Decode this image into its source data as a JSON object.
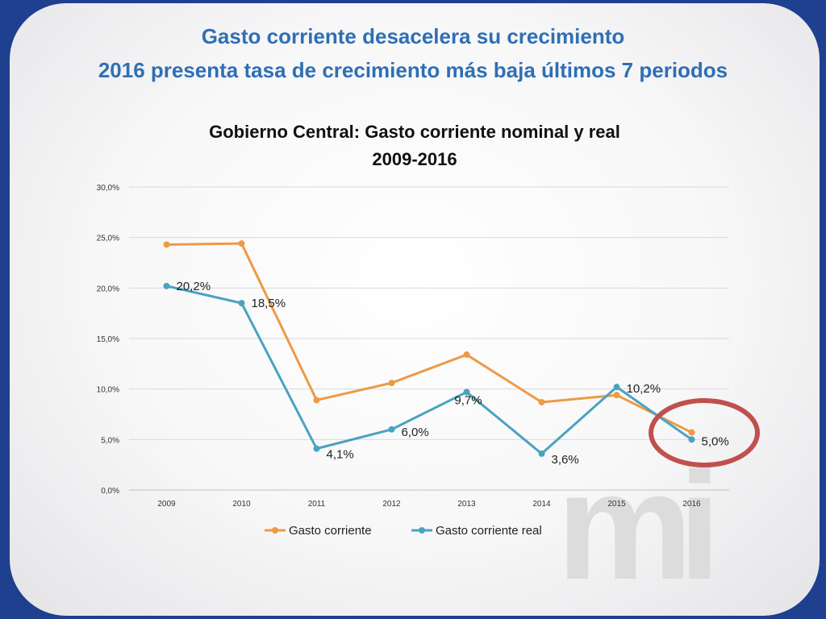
{
  "slide": {
    "headline_1": "Gasto corriente desacelera su crecimiento",
    "headline_2": "2016 presenta  tasa de crecimiento más baja últimos 7  periodos",
    "logo_text": "mi"
  },
  "colors": {
    "background": "#1f3f8f",
    "headline": "#2f6fb5",
    "series_nominal": "#ed9a44",
    "series_real": "#4aa3c0",
    "highlight_ellipse": "#c0504d"
  },
  "chart_data": {
    "type": "line",
    "title": "Gobierno Central: Gasto corriente nominal y real",
    "subtitle": "2009-2016",
    "categories": [
      "2009",
      "2010",
      "2011",
      "2012",
      "2013",
      "2014",
      "2015",
      "2016"
    ],
    "ylim": [
      0,
      30
    ],
    "yticks": [
      "0,0%",
      "5,0%",
      "10,0%",
      "15,0%",
      "20,0%",
      "25,0%",
      "30,0%"
    ],
    "grid": true,
    "legend_position": "bottom",
    "series": [
      {
        "name": "Gasto corriente",
        "color": "#ed9a44",
        "values": [
          24.3,
          24.4,
          8.9,
          10.6,
          13.4,
          8.7,
          9.4,
          5.7
        ]
      },
      {
        "name": "Gasto corriente real",
        "color": "#4aa3c0",
        "values": [
          20.2,
          18.5,
          4.1,
          6.0,
          9.7,
          3.6,
          10.2,
          5.0
        ],
        "data_labels": [
          "20,2%",
          "18,5%",
          "4,1%",
          "6,0%",
          "9,7%",
          "3,6%",
          "10,2%",
          "5,0%"
        ]
      }
    ],
    "annotation": "highlight circle around 2016"
  }
}
